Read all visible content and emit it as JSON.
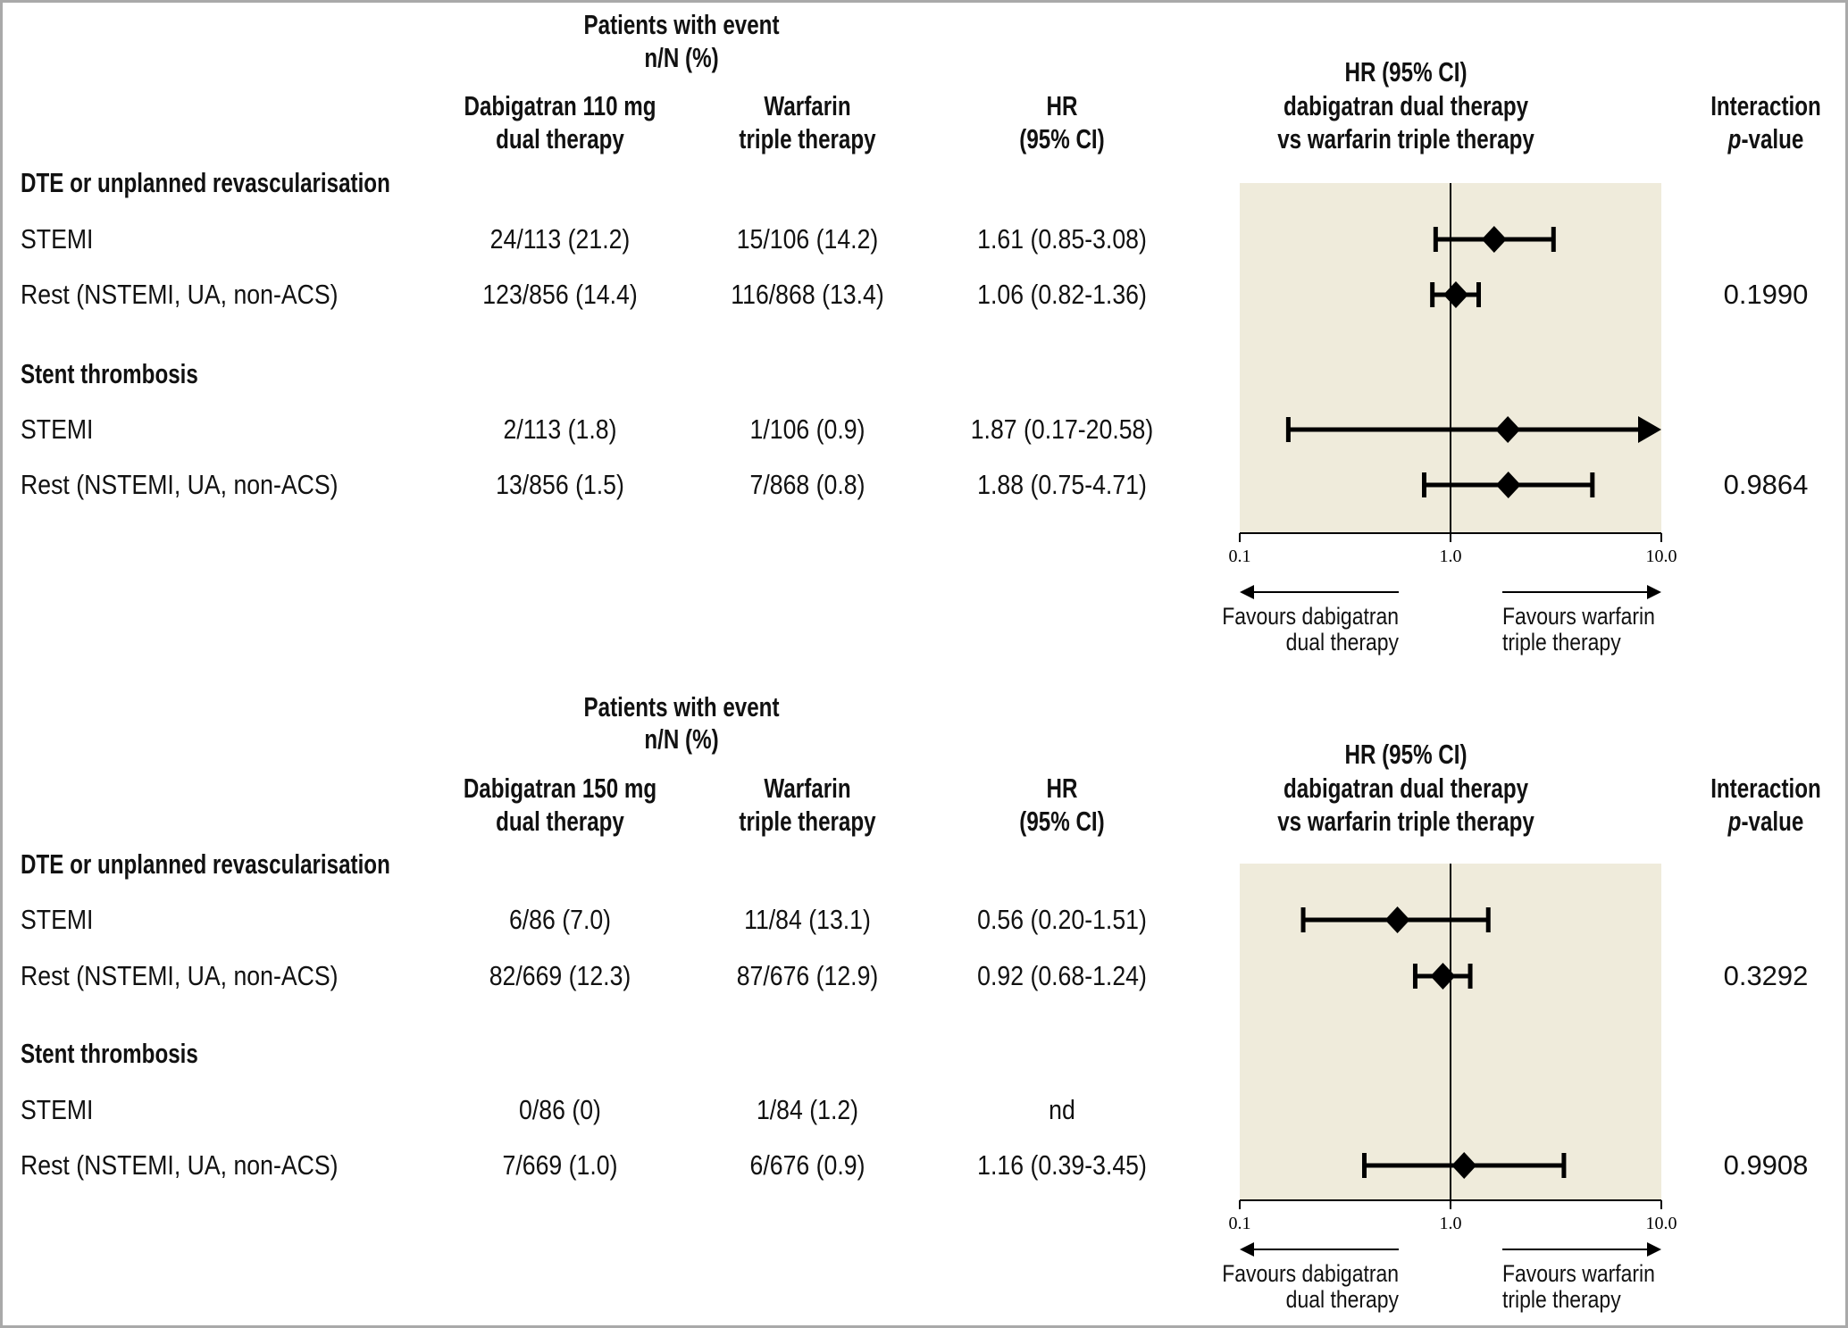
{
  "panels": [
    {
      "header_group": "Patients with event",
      "header_group_sub": "n/N (%)",
      "col1": [
        "Dabigatran 110 mg",
        "dual therapy"
      ],
      "col2": [
        "Warfarin",
        "triple therapy"
      ],
      "col3": [
        "HR",
        "(95% CI)"
      ],
      "col4": [
        "HR (95% CI)",
        "dabigatran dual therapy",
        "vs warfarin triple therapy"
      ],
      "col5": [
        "Interaction",
        "-value"
      ],
      "col5_italic": "p",
      "sections": [
        {
          "title": "DTE or unplanned revascularisation",
          "p_value": "0.1990",
          "rows": [
            {
              "label": "STEMI",
              "dabigatran": "24/113 (21.2)",
              "warfarin": "15/106 (14.2)",
              "hr_text": "1.61 (0.85-3.08)"
            },
            {
              "label": "Rest (NSTEMI, UA, non-ACS)",
              "dabigatran": "123/856 (14.4)",
              "warfarin": "116/868 (13.4)",
              "hr_text": "1.06 (0.82-1.36)"
            }
          ]
        },
        {
          "title": "Stent thrombosis",
          "p_value": "0.9864",
          "rows": [
            {
              "label": "STEMI",
              "dabigatran": "2/113 (1.8)",
              "warfarin": "1/106 (0.9)",
              "hr_text": "1.87 (0.17-20.58)"
            },
            {
              "label": "Rest (NSTEMI, UA, non-ACS)",
              "dabigatran": "13/856 (1.5)",
              "warfarin": "7/868 (0.8)",
              "hr_text": "1.88 (0.75-4.71)"
            }
          ]
        }
      ],
      "favours_left": [
        "Favours dabigatran",
        "dual therapy"
      ],
      "favours_right": [
        "Favours warfarin",
        "triple therapy"
      ]
    },
    {
      "header_group": "Patients with event",
      "header_group_sub": "n/N (%)",
      "col1": [
        "Dabigatran 150 mg",
        "dual therapy"
      ],
      "col2": [
        "Warfarin",
        "triple therapy"
      ],
      "col3": [
        "HR",
        "(95% CI)"
      ],
      "col4": [
        "HR (95% CI)",
        "dabigatran dual therapy",
        "vs warfarin triple therapy"
      ],
      "col5": [
        "Interaction",
        "-value"
      ],
      "col5_italic": "p",
      "sections": [
        {
          "title": "DTE or unplanned revascularisation",
          "p_value": "0.3292",
          "rows": [
            {
              "label": "STEMI",
              "dabigatran": "6/86 (7.0)",
              "warfarin": "11/84 (13.1)",
              "hr_text": "0.56 (0.20-1.51)"
            },
            {
              "label": "Rest (NSTEMI, UA, non-ACS)",
              "dabigatran": "82/669 (12.3)",
              "warfarin": "87/676 (12.9)",
              "hr_text": "0.92 (0.68-1.24)"
            }
          ]
        },
        {
          "title": "Stent thrombosis",
          "p_value": "0.9908",
          "rows": [
            {
              "label": "STEMI",
              "dabigatran": "0/86 (0)",
              "warfarin": "1/84 (1.2)",
              "hr_text": "nd"
            },
            {
              "label": "Rest (NSTEMI, UA, non-ACS)",
              "dabigatran": "7/669 (1.0)",
              "warfarin": "6/676 (0.9)",
              "hr_text": "1.16 (0.39-3.45)"
            }
          ]
        }
      ],
      "favours_left": [
        "Favours dabigatran",
        "dual therapy"
      ],
      "favours_right": [
        "Favours warfarin",
        "triple therapy"
      ]
    }
  ],
  "colors": {
    "plot_background": "#efebdb",
    "marker": "#000000",
    "border": "#a9a9a9"
  },
  "chart_data": [
    {
      "type": "scatter",
      "subtype": "forest",
      "title": "HR (95% CI) dabigatran dual therapy vs warfarin triple therapy — Dabigatran 110 mg",
      "xscale": "log",
      "xlim": [
        0.1,
        10.0
      ],
      "xticks": [
        "0.1",
        "1.0",
        "10.0"
      ],
      "reference_line": 1.0,
      "xlabel_left": "Favours dabigatran dual therapy",
      "xlabel_right": "Favours warfarin triple therapy",
      "points": [
        {
          "section": "DTE or unplanned revascularisation",
          "label": "STEMI",
          "hr": 1.61,
          "lo": 0.85,
          "hi": 3.08
        },
        {
          "section": "DTE or unplanned revascularisation",
          "label": "Rest (NSTEMI, UA, non-ACS)",
          "hr": 1.06,
          "lo": 0.82,
          "hi": 1.36
        },
        {
          "section": "Stent thrombosis",
          "label": "STEMI",
          "hr": 1.87,
          "lo": 0.17,
          "hi": 20.58,
          "truncated_right": true
        },
        {
          "section": "Stent thrombosis",
          "label": "Rest (NSTEMI, UA, non-ACS)",
          "hr": 1.88,
          "lo": 0.75,
          "hi": 4.71
        }
      ]
    },
    {
      "type": "scatter",
      "subtype": "forest",
      "title": "HR (95% CI) dabigatran dual therapy vs warfarin triple therapy — Dabigatran 150 mg",
      "xscale": "log",
      "xlim": [
        0.1,
        10.0
      ],
      "xticks": [
        "0.1",
        "1.0",
        "10.0"
      ],
      "reference_line": 1.0,
      "xlabel_left": "Favours dabigatran dual therapy",
      "xlabel_right": "Favours warfarin triple therapy",
      "points": [
        {
          "section": "DTE or unplanned revascularisation",
          "label": "STEMI",
          "hr": 0.56,
          "lo": 0.2,
          "hi": 1.51
        },
        {
          "section": "DTE or unplanned revascularisation",
          "label": "Rest (NSTEMI, UA, non-ACS)",
          "hr": 0.92,
          "lo": 0.68,
          "hi": 1.24
        },
        {
          "section": "Stent thrombosis",
          "label": "STEMI",
          "hr": null,
          "lo": null,
          "hi": null
        },
        {
          "section": "Stent thrombosis",
          "label": "Rest (NSTEMI, UA, non-ACS)",
          "hr": 1.16,
          "lo": 0.39,
          "hi": 3.45
        }
      ]
    }
  ]
}
